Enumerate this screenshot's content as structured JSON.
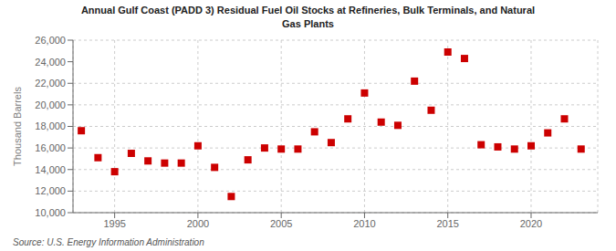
{
  "chart_data": {
    "type": "scatter",
    "title": "Annual Gulf Coast (PADD 3) Residual Fuel Oil Stocks at Refineries, Bulk Terminals, and Natural\nGas Plants",
    "y_label": "Thousand Barrels",
    "annotations": [
      "Source: U.S. Energy Information Administration"
    ],
    "x": [
      1993,
      1994,
      1995,
      1996,
      1997,
      1998,
      1999,
      2000,
      2001,
      2002,
      2003,
      2004,
      2005,
      2006,
      2007,
      2008,
      2009,
      2010,
      2011,
      2012,
      2013,
      2014,
      2015,
      2016,
      2017,
      2018,
      2019,
      2020,
      2021,
      2022,
      2023
    ],
    "values": [
      17600,
      15100,
      13800,
      15500,
      14800,
      14600,
      14600,
      16200,
      14200,
      11500,
      14900,
      16000,
      15900,
      15900,
      17500,
      16500,
      18700,
      21100,
      18400,
      18100,
      22200,
      19500,
      24900,
      24300,
      16300,
      16100,
      15900,
      16200,
      17400,
      18700,
      15900
    ],
    "color": "#cc0000",
    "marker": "square",
    "xlim": [
      1992.5,
      2024
    ],
    "xticks": [
      1995,
      2000,
      2005,
      2010,
      2015,
      2020
    ],
    "ylim": [
      10000,
      26000
    ],
    "yticks": [
      {
        "value": 10000,
        "label": "10,000"
      },
      {
        "value": 12000,
        "label": "12,000"
      },
      {
        "value": 14000,
        "label": "14,000"
      },
      {
        "value": 16000,
        "label": "16,000"
      },
      {
        "value": 18000,
        "label": "18,000"
      },
      {
        "value": 20000,
        "label": "20,000"
      },
      {
        "value": 22000,
        "label": "22,000"
      },
      {
        "value": 24000,
        "label": "24,000"
      },
      {
        "value": 26000,
        "label": "26,000"
      }
    ],
    "grid": true
  }
}
